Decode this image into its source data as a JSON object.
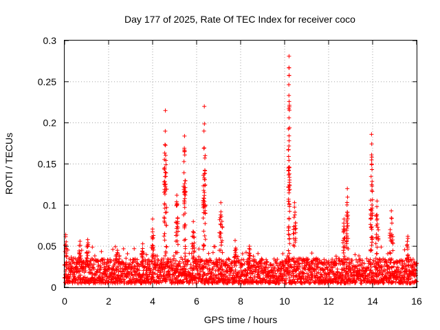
{
  "chart_data": {
    "type": "scatter",
    "title": "Day 177 of 2025, Rate Of TEC Index for receiver coco",
    "xlabel": "GPS time / hours",
    "ylabel": "ROTI / TECUs",
    "xlim": [
      0,
      16
    ],
    "ylim": [
      0,
      0.3
    ],
    "x_ticks": [
      0,
      2,
      4,
      6,
      8,
      10,
      12,
      14,
      16
    ],
    "x_tick_labels": [
      "0",
      "2",
      "4",
      "6",
      "8",
      "10",
      "12",
      "14",
      "16"
    ],
    "y_ticks": [
      0,
      0.05,
      0.1,
      0.15,
      0.2,
      0.25,
      0.3
    ],
    "y_tick_labels": [
      "0",
      "0.05",
      "0.1",
      "0.15",
      "0.2",
      "0.25",
      "0.3"
    ],
    "grid": true,
    "marker": "plus",
    "marker_color": "#ff0000",
    "baseline": {
      "x_range": [
        0,
        16
      ],
      "step_hours": 0.02,
      "points_per_step": 3,
      "y_min": 0.005,
      "y_typical_max": 0.035,
      "y_occasional_max": 0.05
    },
    "bursts": [
      {
        "center": 0.05,
        "width": 0.06,
        "peak": 0.064
      },
      {
        "center": 0.7,
        "width": 0.15,
        "peak": 0.056
      },
      {
        "center": 1.05,
        "width": 0.1,
        "peak": 0.058
      },
      {
        "center": 2.4,
        "width": 0.2,
        "peak": 0.045
      },
      {
        "center": 3.55,
        "width": 0.1,
        "peak": 0.053
      },
      {
        "center": 4.0,
        "width": 0.08,
        "peak": 0.083
      },
      {
        "center": 4.58,
        "width": 0.12,
        "peak": 0.215
      },
      {
        "center": 5.1,
        "width": 0.12,
        "peak": 0.112
      },
      {
        "center": 5.45,
        "width": 0.1,
        "peak": 0.184
      },
      {
        "center": 5.85,
        "width": 0.12,
        "peak": 0.08
      },
      {
        "center": 6.35,
        "width": 0.1,
        "peak": 0.22
      },
      {
        "center": 7.1,
        "width": 0.15,
        "peak": 0.103
      },
      {
        "center": 7.75,
        "width": 0.1,
        "peak": 0.057
      },
      {
        "center": 8.4,
        "width": 0.08,
        "peak": 0.05
      },
      {
        "center": 10.2,
        "width": 0.06,
        "peak": 0.281
      },
      {
        "center": 10.45,
        "width": 0.12,
        "peak": 0.103
      },
      {
        "center": 12.7,
        "width": 0.1,
        "peak": 0.083
      },
      {
        "center": 12.85,
        "width": 0.08,
        "peak": 0.12
      },
      {
        "center": 13.95,
        "width": 0.1,
        "peak": 0.186
      },
      {
        "center": 14.2,
        "width": 0.12,
        "peak": 0.105
      },
      {
        "center": 14.85,
        "width": 0.15,
        "peak": 0.093
      },
      {
        "center": 15.6,
        "width": 0.1,
        "peak": 0.062
      }
    ]
  }
}
